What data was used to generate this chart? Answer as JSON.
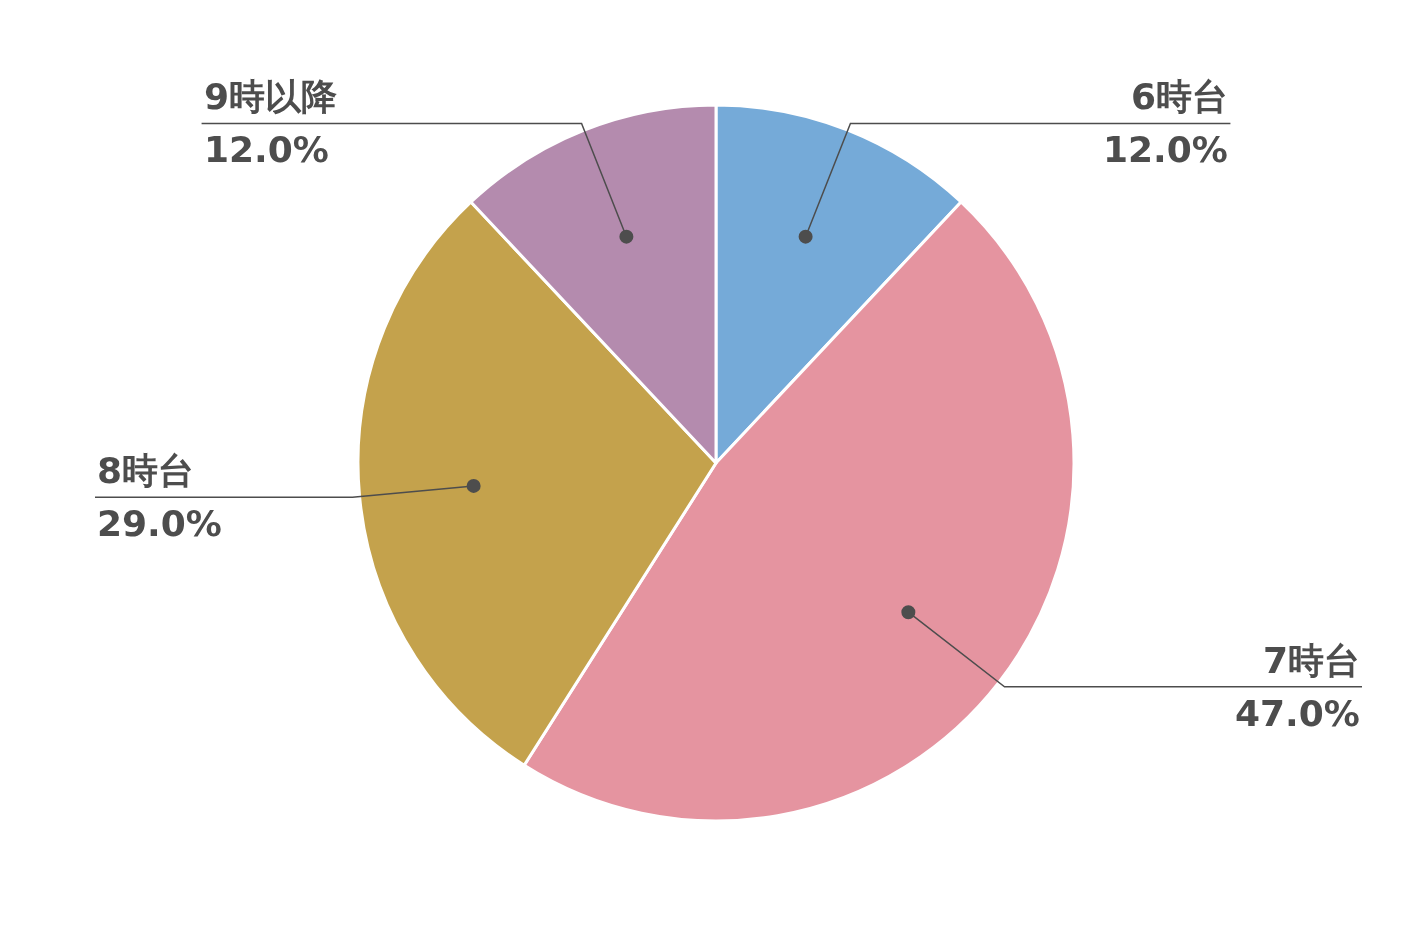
{
  "chart_data": {
    "type": "pie",
    "categories": [
      "6時台",
      "7時台",
      "8時台",
      "9時以降"
    ],
    "values": [
      12,
      47,
      29,
      12
    ],
    "value_labels": [
      "12.0%",
      "47.0%",
      "29.0%",
      "12.0%"
    ],
    "colors": [
      "#75aad8",
      "#e594a0",
      "#c4a24c",
      "#b48bae"
    ],
    "legend": false
  }
}
